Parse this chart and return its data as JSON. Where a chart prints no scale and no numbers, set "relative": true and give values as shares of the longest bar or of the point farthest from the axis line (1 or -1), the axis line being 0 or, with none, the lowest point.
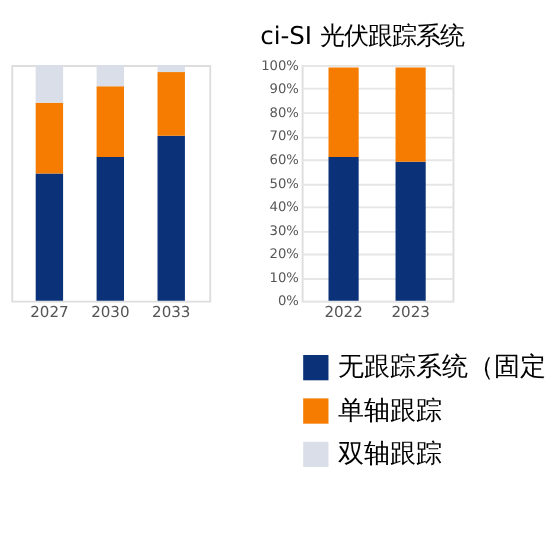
{
  "chart_data": [
    {
      "type": "bar",
      "stacked": true,
      "relative": true,
      "tick_labels": "x",
      "categories": [
        "2027",
        "2030",
        "2033"
      ],
      "series": [
        {
          "color": "#0b3278",
          "values": [
            0.54,
            0.61,
            0.7
          ]
        },
        {
          "color": "#f57c00",
          "values": [
            0.3,
            0.3,
            0.27
          ]
        },
        {
          "color": "#d9dee8",
          "values": [
            0.16,
            0.09,
            0.03
          ]
        }
      ]
    },
    {
      "type": "bar",
      "stacked": true,
      "title": "ci-SI 光伏跟踪系统",
      "categories": [
        "2022",
        "2023"
      ],
      "ylim": [
        0,
        100
      ],
      "yticks": [
        {
          "value": 0,
          "label": "0%"
        },
        {
          "value": 10,
          "label": "10%"
        },
        {
          "value": 20,
          "label": "20%"
        },
        {
          "value": 30,
          "label": "30%"
        },
        {
          "value": 40,
          "label": "40%"
        },
        {
          "value": 50,
          "label": "50%"
        },
        {
          "value": 60,
          "label": "60%"
        },
        {
          "value": 70,
          "label": "70%"
        },
        {
          "value": 80,
          "label": "80%"
        },
        {
          "value": 90,
          "label": "90%"
        },
        {
          "value": 100,
          "label": "100%"
        }
      ],
      "grid": "y",
      "legend": "bottom",
      "series": [
        {
          "name": "无跟踪系统（固定",
          "color": "#0b3278",
          "values": [
            61,
            59
          ]
        },
        {
          "name": "单轴跟踪",
          "color": "#f57c00",
          "values": [
            38,
            40
          ]
        },
        {
          "name": "双轴跟踪",
          "color": "#d9dee8",
          "values": [
            null,
            null
          ]
        }
      ]
    }
  ]
}
